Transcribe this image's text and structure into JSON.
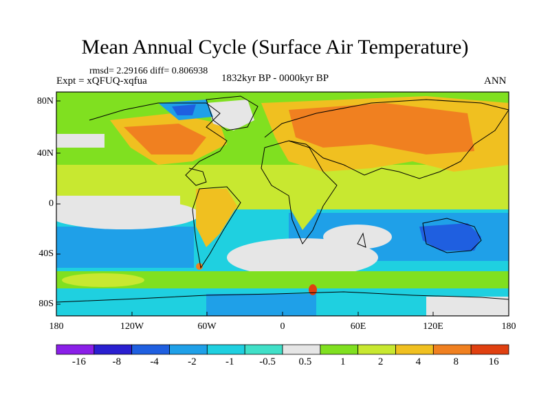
{
  "title": "Mean Annual Cycle (Surface Air Temperature)",
  "stats": "rmsd= 2.29166 diff= 0.806938",
  "experiment": "Expt = xQFUQ-xqfua",
  "period": "1832kyr BP - 0000kyr BP",
  "season": "ANN",
  "lat_ticks": [
    "80N",
    "40N",
    "0",
    "40S",
    "80S"
  ],
  "lon_ticks": [
    "180",
    "120W",
    "60W",
    "0",
    "60E",
    "120E",
    "180"
  ],
  "colorbar": {
    "labels": [
      "-16",
      "-8",
      "-4",
      "-2",
      "-1",
      "-0.5",
      "0.5",
      "1",
      "2",
      "4",
      "8",
      "16"
    ],
    "colors": [
      "#8a1fe8",
      "#2a1fd0",
      "#1f5fe0",
      "#1fa0e8",
      "#1fd0e0",
      "#40e0c8",
      "#e6e6e6",
      "#80e020",
      "#c8e830",
      "#f0c020",
      "#f08020",
      "#e04010"
    ]
  },
  "palette": {
    "ocean_neg": "#1fd0e0",
    "ocean_deep": "#1fa0e8",
    "neutral": "#e6e6e6",
    "pos1": "#80e020",
    "pos2": "#c8e830",
    "pos3": "#f0c020",
    "pos4": "#f08020",
    "neg3": "#1f5fe0"
  }
}
